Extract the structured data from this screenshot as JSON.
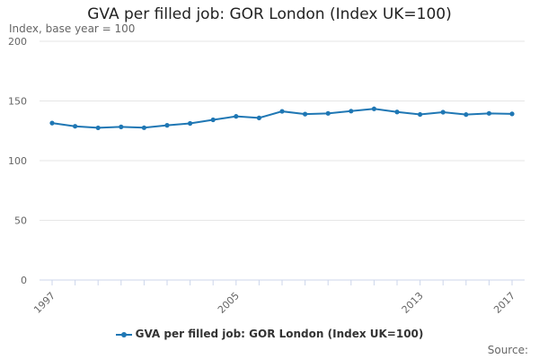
{
  "chart_data": {
    "type": "line",
    "title": "GVA per filled job: GOR London (Index UK=100)",
    "subtitle": "Index, base year = 100",
    "xlabel": "",
    "ylabel": "",
    "xlim": [
      1997,
      2017
    ],
    "ylim": [
      0,
      200
    ],
    "yticks": [
      0,
      50,
      100,
      150,
      200
    ],
    "xtick_labels": [
      "1997",
      "2005",
      "2013",
      "2017"
    ],
    "grid": true,
    "legend_position": "bottom",
    "x": [
      1997,
      1998,
      1999,
      2000,
      2001,
      2002,
      2003,
      2004,
      2005,
      2006,
      2007,
      2008,
      2009,
      2010,
      2011,
      2012,
      2013,
      2014,
      2015,
      2016,
      2017
    ],
    "series": [
      {
        "name": "GVA per filled job: GOR London (Index UK=100)",
        "color": "#1f77b4",
        "values": [
          131.5,
          128.8,
          127.5,
          128.3,
          127.6,
          129.6,
          131.2,
          134.2,
          137.1,
          135.8,
          141.3,
          139.0,
          139.6,
          141.5,
          143.4,
          140.8,
          138.7,
          140.6,
          138.6,
          139.6,
          139.2
        ]
      }
    ]
  },
  "footer": {
    "source_label": "Source:"
  }
}
